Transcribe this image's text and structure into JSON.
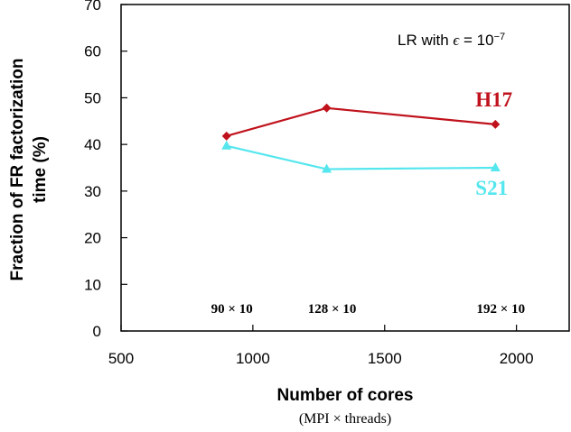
{
  "chart_data": {
    "type": "line",
    "xlabel": "Number of cores",
    "xlabel_sub": "(MPI × threads)",
    "ylabel_line1": "Fraction of FR factorization",
    "ylabel_line2": "time (%)",
    "xlim": [
      500,
      2200
    ],
    "ylim": [
      0,
      70
    ],
    "xticks": [
      500,
      1000,
      1500,
      2000
    ],
    "yticks": [
      0,
      10,
      20,
      30,
      40,
      50,
      60,
      70
    ],
    "x": [
      900,
      1280,
      1920
    ],
    "point_annotations": [
      "90 × 10",
      "128 × 10",
      "192 × 10"
    ],
    "note": {
      "prefix": "LR with ",
      "epsilon": "ϵ",
      "equals": " = 10",
      "exponent": "−7"
    },
    "series": [
      {
        "name": "H17",
        "values": [
          41.8,
          47.8,
          44.3
        ],
        "color": "#C0121C",
        "marker": "diamond"
      },
      {
        "name": "S21",
        "values": [
          39.7,
          34.7,
          35.0
        ],
        "color": "#55E6EE",
        "marker": "triangle"
      }
    ],
    "grid": false,
    "legend": "inline labels near line ends"
  }
}
